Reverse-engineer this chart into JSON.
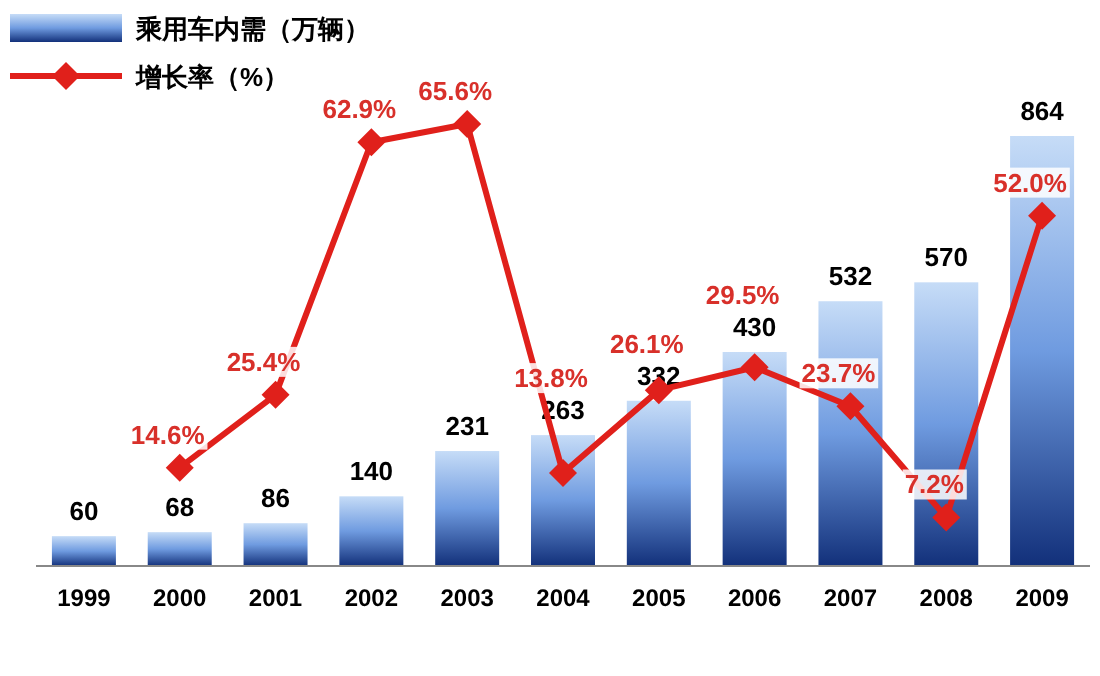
{
  "chart_data": {
    "type": "bar",
    "categories": [
      "1999",
      "2000",
      "2001",
      "2002",
      "2003",
      "2004",
      "2005",
      "2006",
      "2007",
      "2008",
      "2009"
    ],
    "series": [
      {
        "name": "乘用车内需（万辆）",
        "color": "#6f9be0",
        "values": [
          60,
          68,
          86,
          140,
          231,
          263,
          332,
          430,
          532,
          570,
          864
        ]
      },
      {
        "name": "增长率（%）",
        "type": "line",
        "axis": "y2",
        "color": "#e0201b",
        "marker": "diamond",
        "values": [
          null,
          14.6,
          25.4,
          62.9,
          65.6,
          13.8,
          26.1,
          29.5,
          23.7,
          7.2,
          52.0
        ],
        "value_labels": [
          null,
          "14.6%",
          "25.4%",
          "62.9%",
          "65.6%",
          "13.8%",
          "26.1%",
          "29.5%",
          "23.7%",
          "7.2%",
          "52.0%"
        ]
      }
    ],
    "data_labels": true,
    "legend": "top left"
  }
}
